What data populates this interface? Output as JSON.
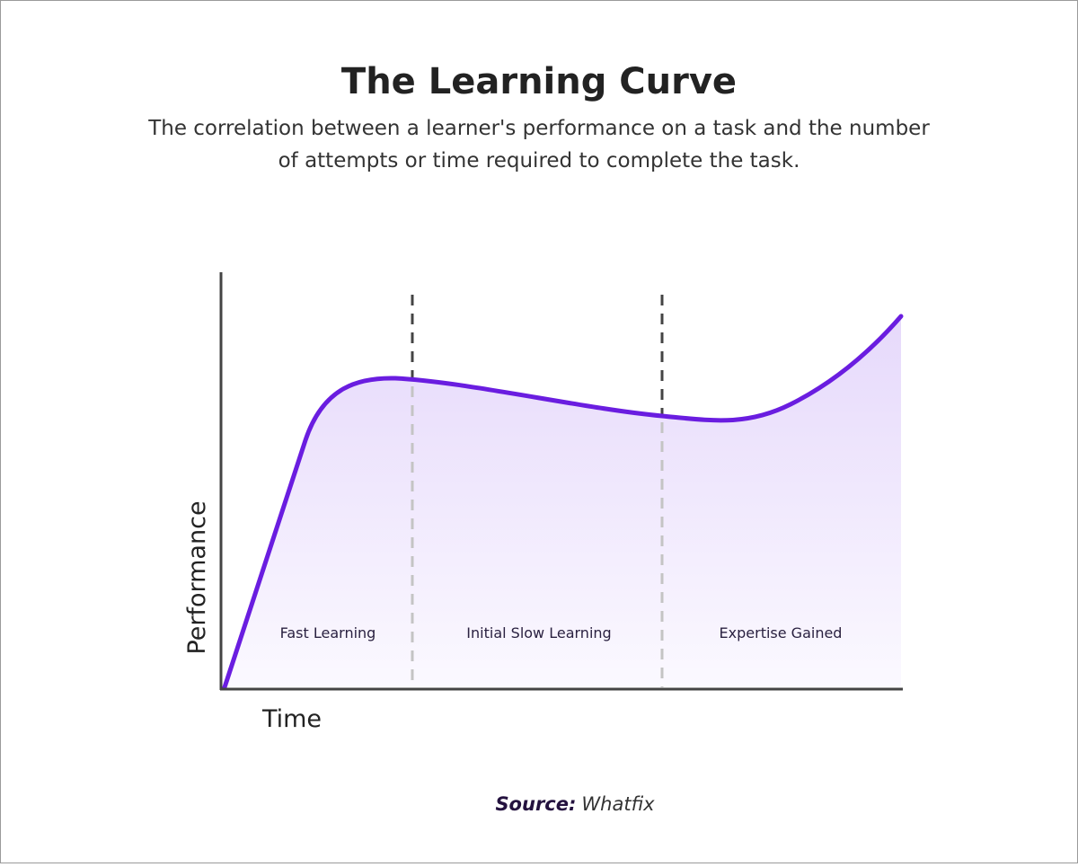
{
  "header": {
    "title": "The Learning Curve",
    "subtitle": [
      "The correlation between a learner's performance on a task and the number",
      "of attempts or time required to complete the task."
    ]
  },
  "axes": {
    "y_label": "Performance",
    "x_label": "Time"
  },
  "phases": [
    "Fast Learning",
    "Initial Slow Learning",
    "Expertise Gained"
  ],
  "source": {
    "label": "Source:",
    "name": "Whatfix"
  }
}
